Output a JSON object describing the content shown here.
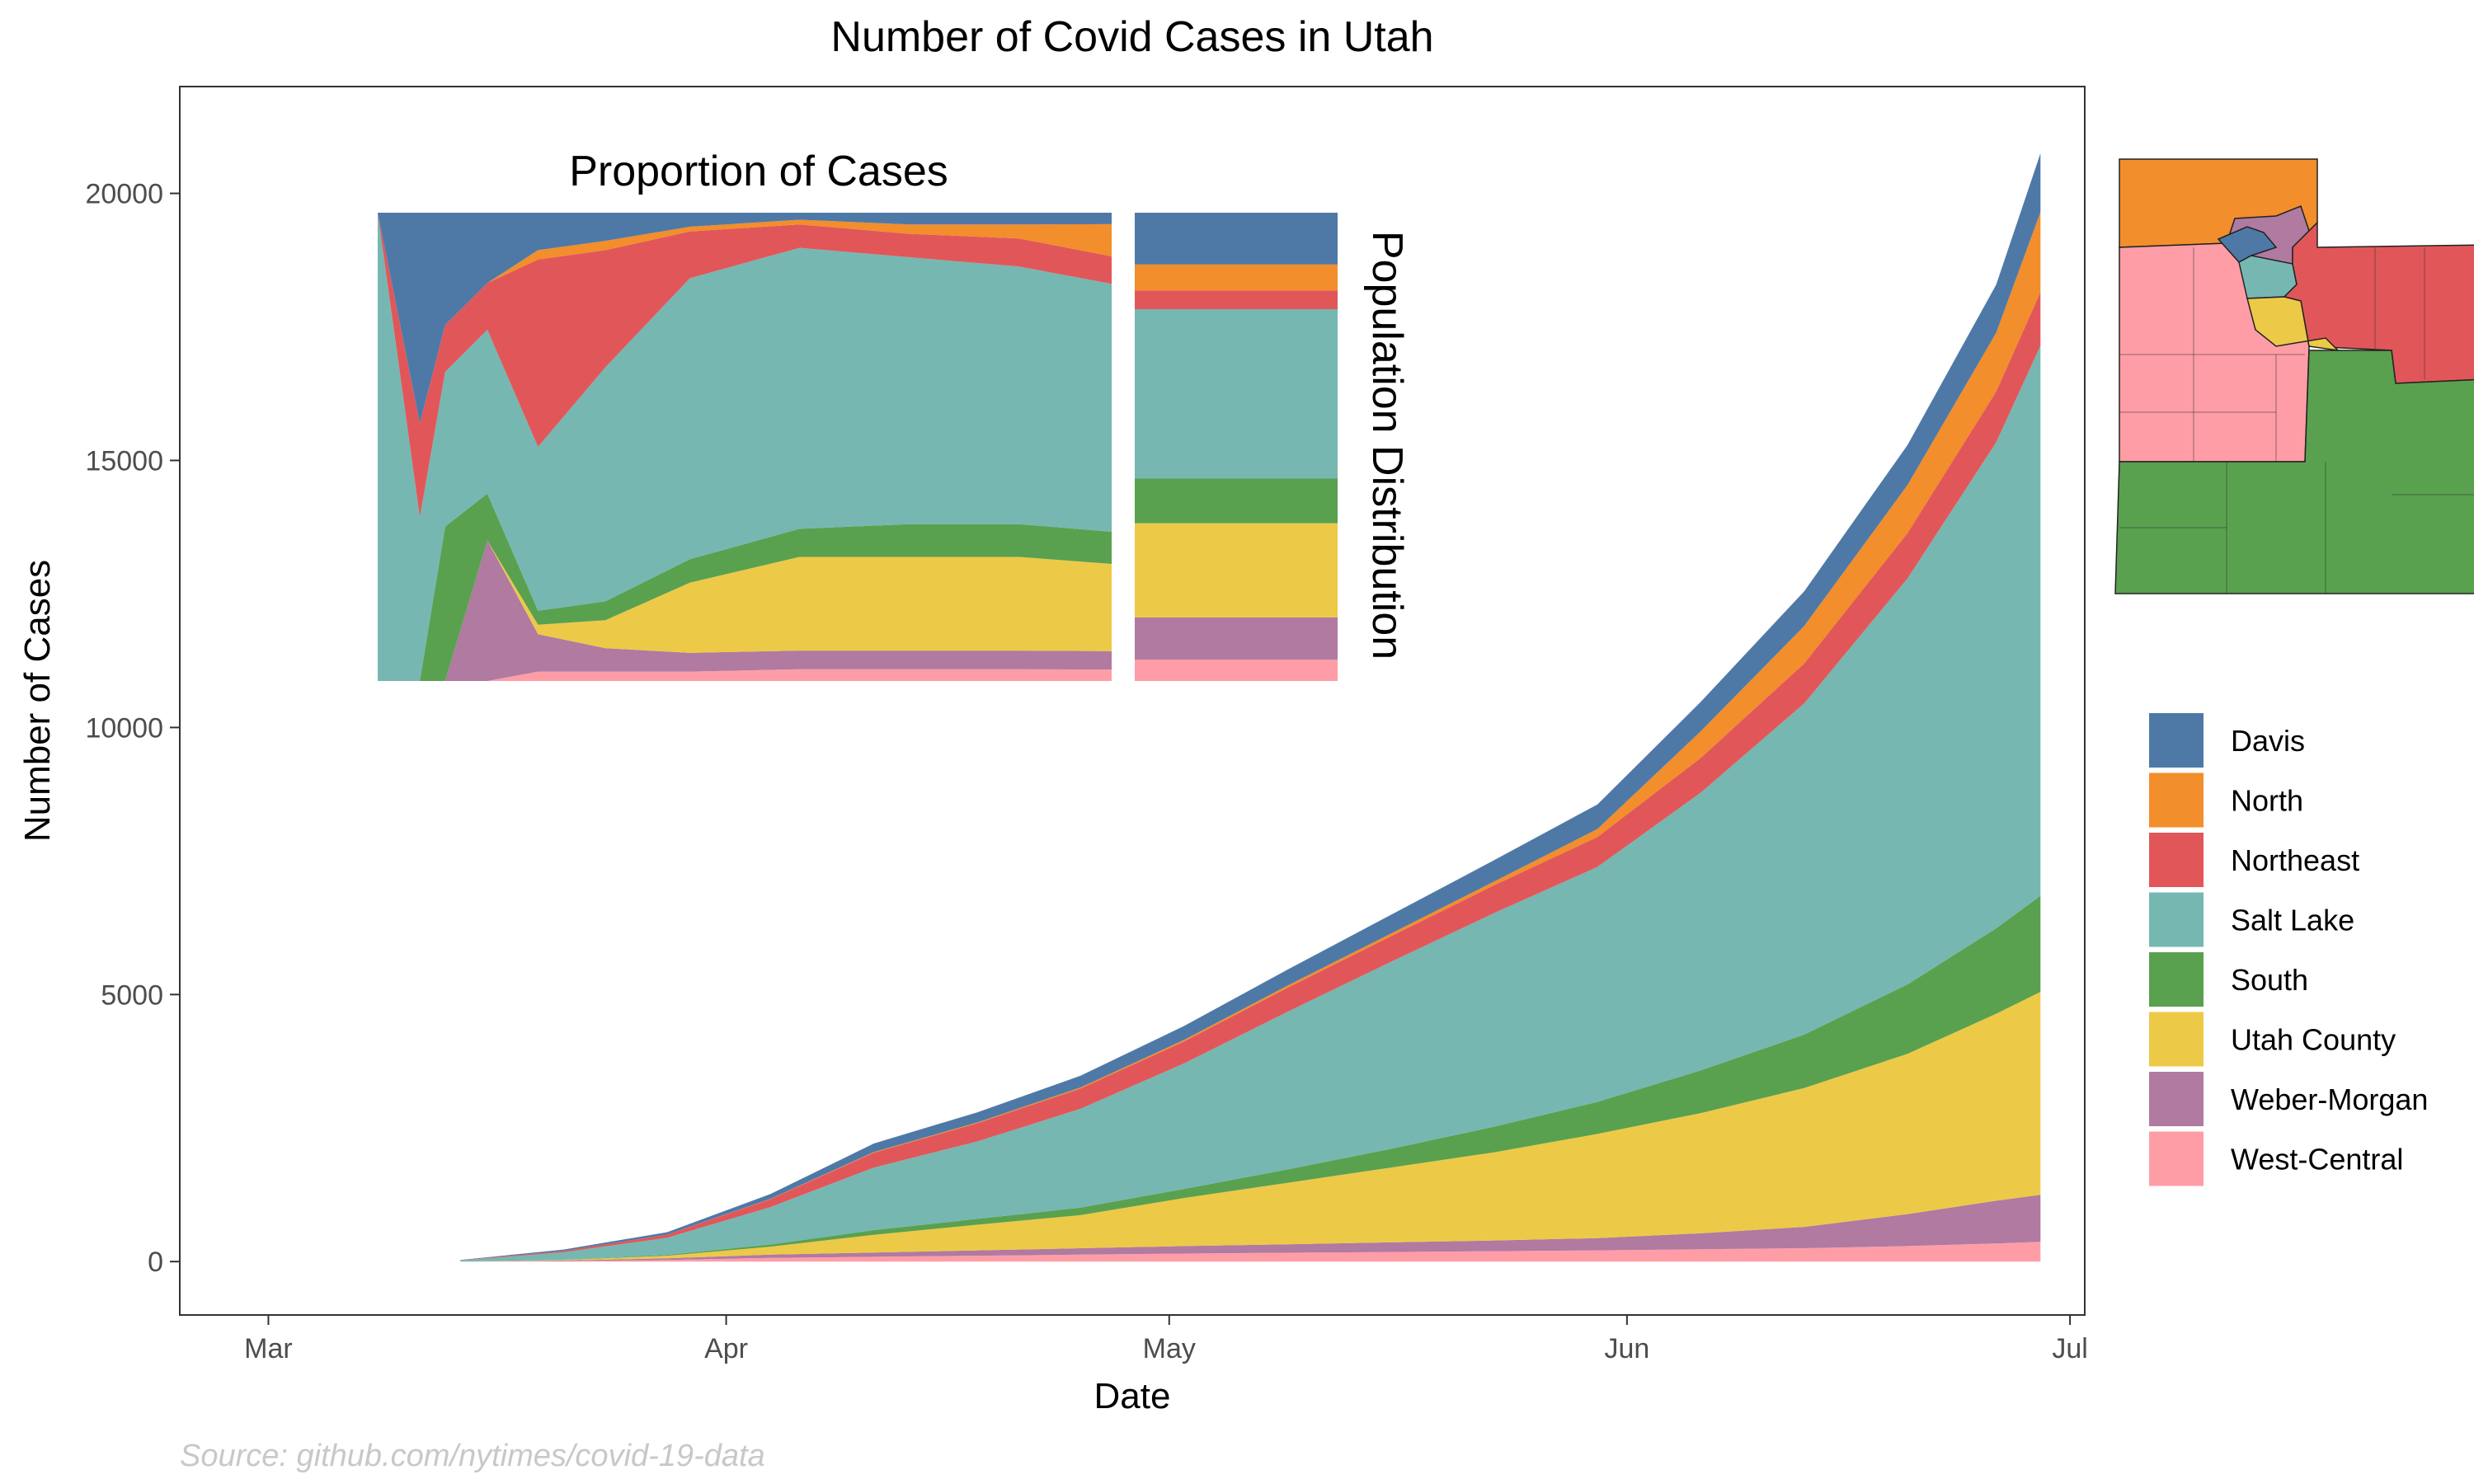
{
  "colors": {
    "Davis": "#4e79a7",
    "North": "#f28e2b",
    "Northeast": "#e15759",
    "Salt Lake": "#76b7b2",
    "South": "#59a14f",
    "Utah County": "#edc948",
    "Weber-Morgan": "#b07aa1",
    "West-Central": "#ff9da7"
  },
  "chart_data": [
    {
      "type": "area",
      "stacked": true,
      "title": "Number of Covid Cases in Utah",
      "xlabel": "Date",
      "ylabel": "Number of Cases",
      "xlim": [
        "2020-02-24",
        "2020-07-02"
      ],
      "ylim": [
        -1000,
        22000
      ],
      "x_ticks": [
        {
          "date": "2020-03-01",
          "label": "Mar"
        },
        {
          "date": "2020-04-01",
          "label": "Apr"
        },
        {
          "date": "2020-05-01",
          "label": "May"
        },
        {
          "date": "2020-06-01",
          "label": "Jun"
        },
        {
          "date": "2020-07-01",
          "label": "Jul"
        }
      ],
      "y_ticks": [
        0,
        5000,
        10000,
        15000,
        20000
      ],
      "grid": false,
      "legend_position": "right",
      "x": [
        "2020-03-14",
        "2020-03-21",
        "2020-03-28",
        "2020-04-04",
        "2020-04-11",
        "2020-04-18",
        "2020-04-25",
        "2020-05-02",
        "2020-05-09",
        "2020-05-16",
        "2020-05-23",
        "2020-05-30",
        "2020-06-06",
        "2020-06-13",
        "2020-06-20",
        "2020-06-26",
        "2020-06-29"
      ],
      "series": [
        {
          "name": "West-Central",
          "values": [
            0,
            10,
            30,
            70,
            90,
            110,
            130,
            150,
            165,
            180,
            195,
            210,
            230,
            250,
            290,
            340,
            370
          ]
        },
        {
          "name": "Weber-Morgan",
          "values": [
            0,
            10,
            30,
            60,
            80,
            100,
            120,
            140,
            160,
            180,
            200,
            230,
            300,
            400,
            600,
            800,
            880
          ]
        },
        {
          "name": "Utah County",
          "values": [
            0,
            10,
            50,
            150,
            330,
            480,
            620,
            900,
            1150,
            1400,
            1650,
            1950,
            2250,
            2600,
            3000,
            3500,
            3800
          ]
        },
        {
          "name": "South",
          "values": [
            0,
            5,
            15,
            40,
            90,
            110,
            140,
            170,
            250,
            350,
            480,
            600,
            800,
            1000,
            1300,
            1600,
            1800
          ]
        },
        {
          "name": "Salt Lake",
          "values": [
            20,
            140,
            320,
            700,
            1170,
            1450,
            1850,
            2350,
            2950,
            3500,
            4000,
            4400,
            5200,
            6200,
            7600,
            9100,
            10300
          ]
        },
        {
          "name": "Northeast",
          "values": [
            5,
            25,
            60,
            150,
            280,
            340,
            380,
            410,
            450,
            480,
            520,
            560,
            650,
            750,
            850,
            950,
            1000
          ]
        },
        {
          "name": "North",
          "values": [
            0,
            0,
            0,
            5,
            10,
            15,
            20,
            30,
            40,
            50,
            70,
            150,
            500,
            700,
            900,
            1100,
            1500
          ]
        },
        {
          "name": "Davis",
          "values": [
            5,
            25,
            45,
            90,
            160,
            190,
            220,
            260,
            300,
            350,
            400,
            460,
            550,
            650,
            750,
            900,
            1100
          ]
        }
      ]
    },
    {
      "type": "area",
      "stacked": true,
      "normalized": true,
      "title": "Proportion of Cases",
      "x": [
        "2020-03-01",
        "2020-03-06",
        "2020-03-09",
        "2020-03-14",
        "2020-03-20",
        "2020-03-28",
        "2020-04-07",
        "2020-04-20",
        "2020-05-03",
        "2020-05-16",
        "2020-05-27"
      ],
      "series": [
        {
          "name": "West-Central",
          "values": [
            0,
            0,
            0,
            0,
            0.02,
            0.02,
            0.02,
            0.025,
            0.025,
            0.025,
            0.025
          ]
        },
        {
          "name": "Weber-Morgan",
          "values": [
            0,
            0,
            0,
            0.3,
            0.08,
            0.05,
            0.04,
            0.04,
            0.04,
            0.04,
            0.04
          ]
        },
        {
          "name": "Utah County",
          "values": [
            0,
            0,
            0,
            0,
            0.02,
            0.06,
            0.15,
            0.2,
            0.2,
            0.2,
            0.19
          ]
        },
        {
          "name": "South",
          "values": [
            0,
            0,
            0.33,
            0.1,
            0.03,
            0.04,
            0.05,
            0.06,
            0.07,
            0.07,
            0.07
          ]
        },
        {
          "name": "Salt Lake",
          "values": [
            1,
            0.35,
            0.33,
            0.35,
            0.35,
            0.5,
            0.6,
            0.6,
            0.57,
            0.55,
            0.54
          ]
        },
        {
          "name": "Northeast",
          "values": [
            0,
            0.2,
            0.1,
            0.1,
            0.4,
            0.25,
            0.1,
            0.05,
            0.05,
            0.06,
            0.06
          ]
        },
        {
          "name": "North",
          "values": [
            0,
            0,
            0,
            0,
            0.02,
            0.02,
            0.01,
            0.01,
            0.02,
            0.03,
            0.07
          ]
        },
        {
          "name": "Davis",
          "values": [
            0,
            0.45,
            0.24,
            0.15,
            0.08,
            0.06,
            0.03,
            0.015,
            0.025,
            0.025,
            0.025
          ]
        }
      ]
    },
    {
      "type": "bar",
      "stacked": true,
      "normalized": true,
      "title": "Population Distribution",
      "categories": [
        "West-Central",
        "Weber-Morgan",
        "Utah County",
        "South",
        "Salt Lake",
        "Northeast",
        "North",
        "Davis"
      ],
      "values": [
        0.045,
        0.09,
        0.2,
        0.095,
        0.36,
        0.04,
        0.055,
        0.11
      ]
    }
  ],
  "legend": {
    "items": [
      "Davis",
      "North",
      "Northeast",
      "Salt Lake",
      "South",
      "Utah County",
      "Weber-Morgan",
      "West-Central"
    ]
  },
  "map": {
    "regions": [
      "North",
      "Davis",
      "Weber-Morgan",
      "Salt Lake",
      "Utah County",
      "Northeast",
      "West-Central",
      "South"
    ]
  },
  "source": "Source: github.com/nytimes/covid-19-data"
}
